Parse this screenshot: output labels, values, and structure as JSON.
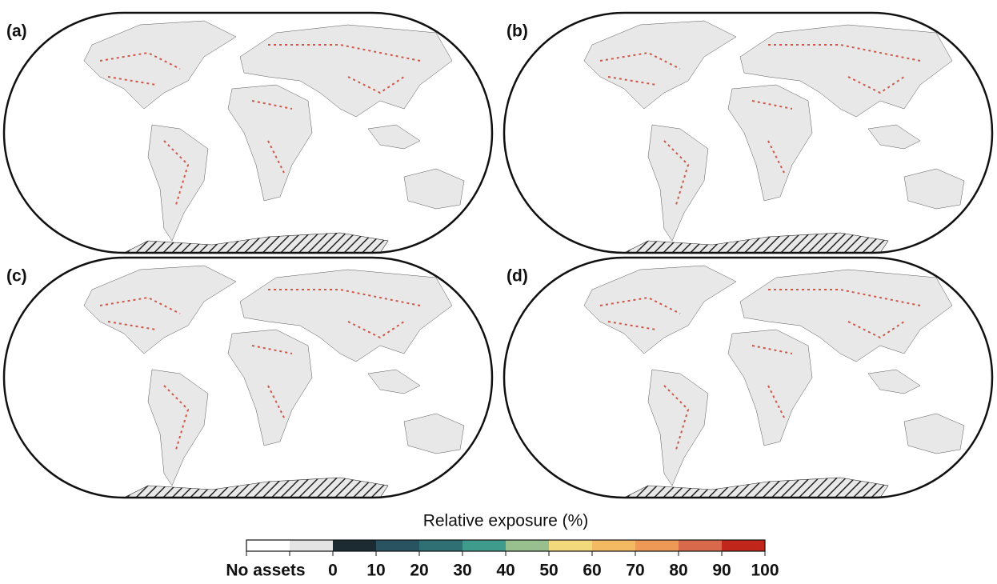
{
  "panels": [
    {
      "label": "(a)"
    },
    {
      "label": "(b)"
    },
    {
      "label": "(c)"
    },
    {
      "label": "(d)"
    }
  ],
  "colorbar": {
    "title": "Relative exposure (%)",
    "no_data_label": "No assets",
    "no_data_colors": [
      "#ffffff",
      "#e4e4e4"
    ],
    "ticks": [
      0,
      10,
      20,
      30,
      40,
      50,
      60,
      70,
      80,
      90,
      100
    ],
    "colors": [
      "#1b2b31",
      "#2a5362",
      "#2f7074",
      "#3f9b8b",
      "#98c08e",
      "#f2da7c",
      "#f4ba63",
      "#ee9a56",
      "#d8694b",
      "#c0261a"
    ]
  }
}
